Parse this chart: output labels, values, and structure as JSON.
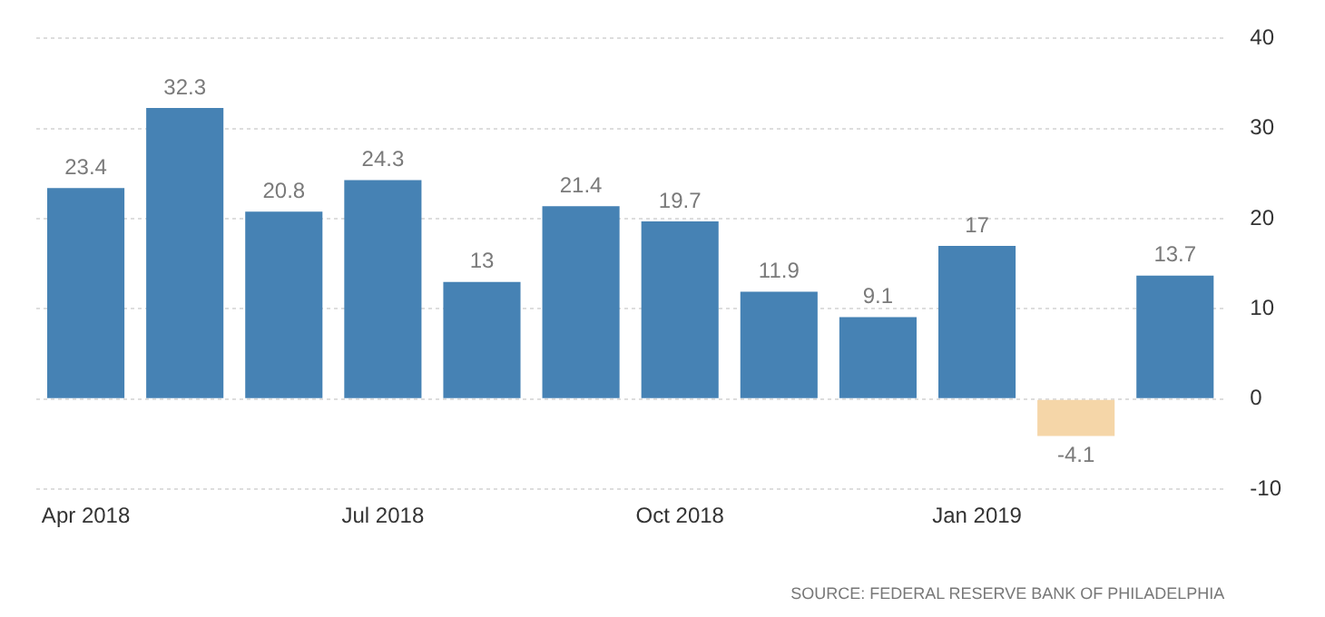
{
  "chart_data": {
    "type": "bar",
    "categories": [
      "Apr 2018",
      null,
      null,
      "Jul 2018",
      null,
      null,
      "Oct 2018",
      null,
      null,
      "Jan 2019",
      null,
      null
    ],
    "values": [
      23.4,
      32.3,
      20.8,
      24.3,
      13,
      21.4,
      19.7,
      11.9,
      9.1,
      17,
      -4.1,
      13.7
    ],
    "colors": [
      "#4682b4",
      "#4682b4",
      "#4682b4",
      "#4682b4",
      "#4682b4",
      "#4682b4",
      "#4682b4",
      "#4682b4",
      "#4682b4",
      "#4682b4",
      "#f5d6a8",
      "#4682b4"
    ],
    "data_labels": true,
    "ylim": [
      -10,
      40
    ],
    "yticks": [
      -10,
      0,
      10,
      20,
      30,
      40
    ],
    "grid": "y",
    "annotations": [
      "SOURCE: FEDERAL RESERVE BANK OF PHILADELPHIA"
    ]
  }
}
